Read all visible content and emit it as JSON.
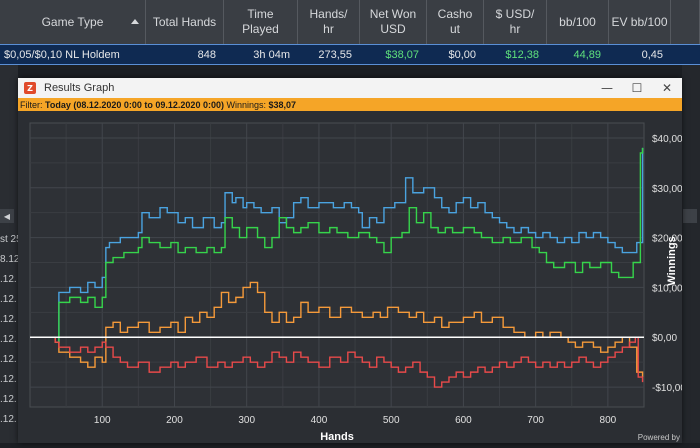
{
  "table": {
    "headers": [
      {
        "label": "Game Type",
        "w": 146
      },
      {
        "label": "Total Hands",
        "w": 78
      },
      {
        "label": "Time\nPlayed",
        "w": 74
      },
      {
        "label": "Hands/\nhr",
        "w": 62
      },
      {
        "label": "Net Won\nUSD",
        "w": 67
      },
      {
        "label": "Casho\nut",
        "w": 57
      },
      {
        "label": "$ USD/\nhr",
        "w": 63
      },
      {
        "label": "bb/100",
        "w": 62
      },
      {
        "label": "EV bb/100",
        "w": 62
      },
      {
        "label": "",
        "w": 29
      }
    ],
    "row": [
      "$0,05/$0,10 NL Holdem",
      "848",
      "3h 04m",
      "273,55",
      "$38,07",
      "$0,00",
      "$12,38",
      "44,89",
      "0,45",
      ""
    ]
  },
  "background": {
    "left_texts": [
      "st 25",
      "8.12.",
      ".12.",
      ".12.",
      ".12.",
      ".12.",
      ".12.",
      ".12.",
      ".12.",
      ".12."
    ],
    "scroll_left": "◀"
  },
  "window": {
    "title": "Results Graph",
    "icon_letter": "Z",
    "controls": {
      "minimize": "—",
      "maximize": "☐",
      "close": "✕"
    },
    "filter_label": "Filter:",
    "filter_value": "Today (08.12.2020 0:00 to 09.12.2020 0:00)",
    "winnings_label": "Winnings:",
    "winnings_value": "$38,07",
    "watermark": "Powered by"
  },
  "chart_data": {
    "type": "line",
    "xlabel": "Hands",
    "ylabel": "Winnings",
    "xlim": [
      0,
      850
    ],
    "ylim": [
      -14,
      43
    ],
    "x_ticks": [
      100,
      200,
      300,
      400,
      500,
      600,
      700,
      800
    ],
    "y_ticks": [
      -10,
      0,
      10,
      20,
      30,
      40
    ],
    "y_tick_labels": [
      "-$10,00",
      "$0,00",
      "$10,00",
      "$20,00",
      "$30,00",
      "$40,00"
    ],
    "grid": true,
    "zero_line_color": "#ffffff",
    "series": [
      {
        "color": "#4aa3e0",
        "points": [
          [
            0,
            0
          ],
          [
            35,
            -1
          ],
          [
            40,
            9
          ],
          [
            55,
            10
          ],
          [
            70,
            9
          ],
          [
            80,
            11
          ],
          [
            90,
            10
          ],
          [
            100,
            12
          ],
          [
            105,
            18
          ],
          [
            110,
            19
          ],
          [
            125,
            20
          ],
          [
            150,
            21
          ],
          [
            155,
            25
          ],
          [
            165,
            24
          ],
          [
            180,
            26
          ],
          [
            190,
            25
          ],
          [
            205,
            23
          ],
          [
            215,
            24
          ],
          [
            225,
            22
          ],
          [
            240,
            24
          ],
          [
            255,
            22
          ],
          [
            265,
            23
          ],
          [
            270,
            29
          ],
          [
            280,
            27
          ],
          [
            285,
            28
          ],
          [
            295,
            26
          ],
          [
            300,
            27
          ],
          [
            310,
            26
          ],
          [
            320,
            25
          ],
          [
            335,
            26
          ],
          [
            345,
            23
          ],
          [
            355,
            24
          ],
          [
            365,
            27
          ],
          [
            375,
            28
          ],
          [
            385,
            26
          ],
          [
            400,
            27
          ],
          [
            420,
            26
          ],
          [
            435,
            27
          ],
          [
            445,
            26
          ],
          [
            455,
            25
          ],
          [
            460,
            22
          ],
          [
            470,
            24
          ],
          [
            480,
            23
          ],
          [
            490,
            26
          ],
          [
            505,
            27
          ],
          [
            520,
            32
          ],
          [
            530,
            29
          ],
          [
            545,
            30
          ],
          [
            560,
            28
          ],
          [
            570,
            26
          ],
          [
            580,
            25
          ],
          [
            590,
            27
          ],
          [
            600,
            28
          ],
          [
            610,
            26
          ],
          [
            620,
            27
          ],
          [
            630,
            25
          ],
          [
            640,
            24
          ],
          [
            650,
            23
          ],
          [
            660,
            22
          ],
          [
            670,
            21
          ],
          [
            680,
            22
          ],
          [
            690,
            21
          ],
          [
            700,
            20
          ],
          [
            710,
            21
          ],
          [
            720,
            20
          ],
          [
            730,
            19
          ],
          [
            740,
            20
          ],
          [
            750,
            19
          ],
          [
            760,
            21
          ],
          [
            770,
            20
          ],
          [
            780,
            21
          ],
          [
            790,
            20
          ],
          [
            800,
            19
          ],
          [
            810,
            18
          ],
          [
            820,
            17
          ],
          [
            830,
            17
          ],
          [
            840,
            19
          ],
          [
            848,
            38
          ]
        ]
      },
      {
        "color": "#36d44b",
        "points": [
          [
            0,
            0
          ],
          [
            35,
            -1
          ],
          [
            40,
            7
          ],
          [
            55,
            8
          ],
          [
            70,
            7
          ],
          [
            80,
            8
          ],
          [
            90,
            6
          ],
          [
            100,
            8
          ],
          [
            105,
            15
          ],
          [
            115,
            16
          ],
          [
            130,
            17
          ],
          [
            150,
            18
          ],
          [
            155,
            20
          ],
          [
            165,
            19
          ],
          [
            180,
            18
          ],
          [
            195,
            19
          ],
          [
            205,
            17
          ],
          [
            215,
            18
          ],
          [
            230,
            17
          ],
          [
            245,
            18
          ],
          [
            255,
            17
          ],
          [
            265,
            18
          ],
          [
            270,
            24
          ],
          [
            280,
            22
          ],
          [
            290,
            20
          ],
          [
            300,
            22
          ],
          [
            315,
            20
          ],
          [
            325,
            18
          ],
          [
            335,
            20
          ],
          [
            345,
            24
          ],
          [
            355,
            22
          ],
          [
            365,
            21
          ],
          [
            375,
            22
          ],
          [
            385,
            23
          ],
          [
            400,
            21
          ],
          [
            415,
            22
          ],
          [
            425,
            21
          ],
          [
            440,
            20
          ],
          [
            455,
            21
          ],
          [
            470,
            20
          ],
          [
            480,
            19
          ],
          [
            490,
            17
          ],
          [
            500,
            20
          ],
          [
            515,
            21
          ],
          [
            525,
            26
          ],
          [
            535,
            23
          ],
          [
            545,
            25
          ],
          [
            555,
            22
          ],
          [
            565,
            21
          ],
          [
            575,
            22
          ],
          [
            585,
            21
          ],
          [
            600,
            22
          ],
          [
            615,
            21
          ],
          [
            625,
            20
          ],
          [
            640,
            19
          ],
          [
            655,
            20
          ],
          [
            665,
            19
          ],
          [
            680,
            20
          ],
          [
            695,
            18
          ],
          [
            705,
            17
          ],
          [
            715,
            15
          ],
          [
            725,
            14
          ],
          [
            740,
            15
          ],
          [
            755,
            13
          ],
          [
            765,
            15
          ],
          [
            775,
            14
          ],
          [
            790,
            15
          ],
          [
            805,
            13
          ],
          [
            815,
            12
          ],
          [
            825,
            12
          ],
          [
            835,
            15
          ],
          [
            845,
            37
          ],
          [
            848,
            38
          ]
        ]
      },
      {
        "color": "#f59a3a",
        "points": [
          [
            0,
            0
          ],
          [
            35,
            -1
          ],
          [
            40,
            -3
          ],
          [
            55,
            -4
          ],
          [
            70,
            -5
          ],
          [
            80,
            -6
          ],
          [
            90,
            -4
          ],
          [
            100,
            -5
          ],
          [
            105,
            2
          ],
          [
            115,
            3
          ],
          [
            125,
            1
          ],
          [
            135,
            2
          ],
          [
            150,
            3
          ],
          [
            165,
            1
          ],
          [
            180,
            2
          ],
          [
            195,
            3
          ],
          [
            205,
            1
          ],
          [
            215,
            4
          ],
          [
            225,
            3
          ],
          [
            235,
            5
          ],
          [
            245,
            4
          ],
          [
            255,
            6
          ],
          [
            265,
            9
          ],
          [
            275,
            7
          ],
          [
            285,
            8
          ],
          [
            295,
            10
          ],
          [
            305,
            11
          ],
          [
            315,
            9
          ],
          [
            325,
            5
          ],
          [
            335,
            3
          ],
          [
            345,
            5
          ],
          [
            355,
            3
          ],
          [
            365,
            4
          ],
          [
            375,
            7
          ],
          [
            385,
            5
          ],
          [
            400,
            6
          ],
          [
            415,
            4
          ],
          [
            430,
            6
          ],
          [
            445,
            5
          ],
          [
            460,
            4
          ],
          [
            475,
            5
          ],
          [
            485,
            4
          ],
          [
            495,
            6
          ],
          [
            510,
            5
          ],
          [
            525,
            4
          ],
          [
            535,
            5
          ],
          [
            545,
            3
          ],
          [
            560,
            4
          ],
          [
            570,
            2
          ],
          [
            580,
            3
          ],
          [
            600,
            4
          ],
          [
            615,
            5
          ],
          [
            625,
            3
          ],
          [
            640,
            4
          ],
          [
            655,
            2
          ],
          [
            670,
            1
          ],
          [
            685,
            0
          ],
          [
            700,
            1
          ],
          [
            710,
            0
          ],
          [
            720,
            1
          ],
          [
            735,
            0
          ],
          [
            745,
            -1
          ],
          [
            755,
            -2
          ],
          [
            765,
            -1
          ],
          [
            780,
            -2
          ],
          [
            790,
            -3
          ],
          [
            800,
            -2
          ],
          [
            810,
            -1
          ],
          [
            820,
            0
          ],
          [
            830,
            -2
          ],
          [
            840,
            -7
          ],
          [
            848,
            -8
          ]
        ]
      },
      {
        "color": "#e84a4a",
        "points": [
          [
            0,
            0
          ],
          [
            35,
            -1
          ],
          [
            40,
            -2
          ],
          [
            55,
            -3
          ],
          [
            70,
            -2
          ],
          [
            80,
            -3
          ],
          [
            90,
            -2
          ],
          [
            100,
            -1
          ],
          [
            105,
            -2
          ],
          [
            115,
            -4
          ],
          [
            125,
            -5
          ],
          [
            135,
            -6
          ],
          [
            150,
            -5
          ],
          [
            165,
            -7
          ],
          [
            180,
            -6
          ],
          [
            195,
            -5
          ],
          [
            205,
            -6
          ],
          [
            215,
            -5
          ],
          [
            230,
            -4
          ],
          [
            245,
            -6
          ],
          [
            260,
            -5
          ],
          [
            270,
            -6
          ],
          [
            280,
            -5
          ],
          [
            295,
            -4
          ],
          [
            305,
            -5
          ],
          [
            315,
            -6
          ],
          [
            325,
            -5
          ],
          [
            335,
            -3
          ],
          [
            345,
            -4
          ],
          [
            355,
            -5
          ],
          [
            365,
            -3
          ],
          [
            375,
            -4
          ],
          [
            385,
            -5
          ],
          [
            400,
            -6
          ],
          [
            415,
            -4
          ],
          [
            430,
            -5
          ],
          [
            440,
            -3
          ],
          [
            450,
            -4
          ],
          [
            460,
            -5
          ],
          [
            470,
            -6
          ],
          [
            480,
            -4
          ],
          [
            490,
            -5
          ],
          [
            500,
            -6
          ],
          [
            510,
            -7
          ],
          [
            520,
            -6
          ],
          [
            530,
            -5
          ],
          [
            540,
            -7
          ],
          [
            550,
            -8
          ],
          [
            560,
            -10
          ],
          [
            570,
            -9
          ],
          [
            580,
            -8
          ],
          [
            590,
            -7
          ],
          [
            600,
            -8
          ],
          [
            610,
            -7
          ],
          [
            620,
            -6
          ],
          [
            630,
            -7
          ],
          [
            640,
            -6
          ],
          [
            650,
            -5
          ],
          [
            660,
            -6
          ],
          [
            670,
            -5
          ],
          [
            680,
            -4
          ],
          [
            690,
            -5
          ],
          [
            700,
            -6
          ],
          [
            710,
            -5
          ],
          [
            720,
            -6
          ],
          [
            730,
            -5
          ],
          [
            740,
            -6
          ],
          [
            750,
            -5
          ],
          [
            760,
            -4
          ],
          [
            770,
            -5
          ],
          [
            780,
            -6
          ],
          [
            790,
            -5
          ],
          [
            800,
            -4
          ],
          [
            810,
            -3
          ],
          [
            820,
            -2
          ],
          [
            830,
            -1
          ],
          [
            838,
            0
          ],
          [
            842,
            -8
          ],
          [
            848,
            -9
          ]
        ]
      }
    ]
  }
}
